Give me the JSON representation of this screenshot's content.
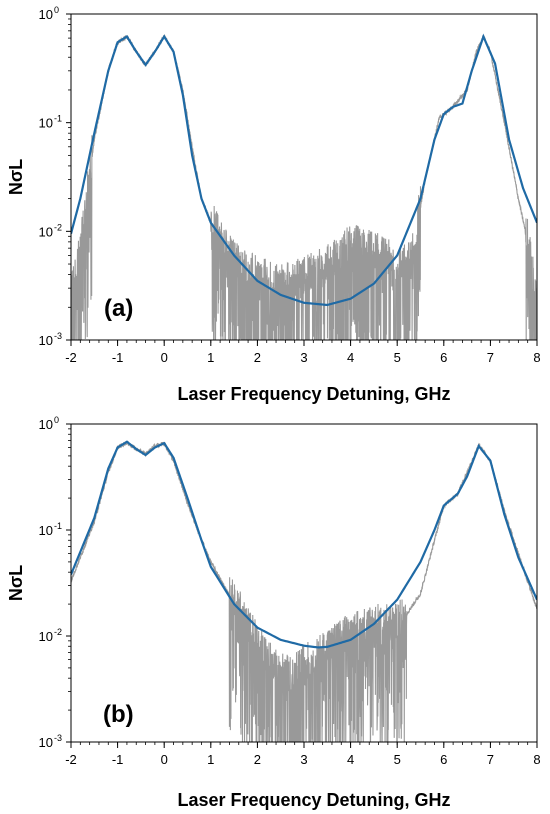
{
  "figure_colors": {
    "fit": "#1f6aa5",
    "measured": "#999999",
    "axis": "#000000"
  },
  "chart_data": [
    {
      "type": "line",
      "panel_label": "(a)",
      "xlabel": "Laser Frequency Detuning, GHz",
      "ylabel": "NσL",
      "xlim": [
        -2,
        8
      ],
      "ylim": [
        0.001,
        1
      ],
      "yscale": "log",
      "xticks": [
        -2,
        -1,
        0,
        1,
        2,
        3,
        4,
        5,
        6,
        7,
        8
      ],
      "xtick_labels": [
        "-2",
        "-1",
        "0",
        "1",
        "2",
        "3",
        "4",
        "5",
        "6",
        "7",
        "8"
      ],
      "yticks": [
        0.001,
        0.01,
        0.1,
        1
      ],
      "ytick_mantissa": [
        "10",
        "10",
        "10",
        "10"
      ],
      "ytick_exponent": [
        "-3",
        "-2",
        "-1",
        "0"
      ],
      "series": [
        {
          "kind": "measured-noisy",
          "color": "#999999",
          "x": [
            -2.0,
            -1.8,
            -1.5,
            -1.2,
            -1.0,
            -0.8,
            -0.6,
            -0.4,
            -0.2,
            0.0,
            0.2,
            0.4,
            0.6,
            0.8,
            1.0,
            1.2,
            1.5,
            2.0,
            2.5,
            3.0,
            3.5,
            4.0,
            4.5,
            5.0,
            5.3,
            5.6,
            5.9,
            6.2,
            6.5,
            6.7,
            6.85,
            7.0,
            7.3,
            7.6,
            7.8,
            8.0
          ],
          "y": [
            0.0025,
            0.006,
            0.07,
            0.3,
            0.55,
            0.62,
            0.45,
            0.34,
            0.45,
            0.62,
            0.45,
            0.2,
            0.06,
            0.02,
            0.012,
            0.008,
            0.005,
            0.0035,
            0.003,
            0.0035,
            0.0045,
            0.007,
            0.006,
            0.0045,
            0.005,
            0.03,
            0.11,
            0.14,
            0.2,
            0.45,
            0.62,
            0.45,
            0.1,
            0.02,
            0.008,
            0.002
          ],
          "noise_floor": 0.001,
          "noise_regions": [
            [
              -2.0,
              -1.55
            ],
            [
              1.0,
              5.5
            ],
            [
              7.75,
              8.0
            ]
          ]
        },
        {
          "kind": "fit",
          "color": "#1f6aa5",
          "x": [
            -2.0,
            -1.8,
            -1.5,
            -1.2,
            -1.0,
            -0.8,
            -0.6,
            -0.4,
            -0.2,
            0.0,
            0.2,
            0.4,
            0.6,
            0.8,
            1.0,
            1.5,
            2.0,
            2.5,
            3.0,
            3.5,
            4.0,
            4.5,
            5.0,
            5.5,
            5.8,
            6.0,
            6.2,
            6.4,
            6.6,
            6.85,
            7.1,
            7.4,
            7.7,
            8.0
          ],
          "y": [
            0.0095,
            0.02,
            0.08,
            0.3,
            0.55,
            0.62,
            0.45,
            0.34,
            0.45,
            0.62,
            0.45,
            0.18,
            0.05,
            0.02,
            0.012,
            0.006,
            0.0035,
            0.0026,
            0.0022,
            0.0021,
            0.0024,
            0.0033,
            0.006,
            0.02,
            0.07,
            0.12,
            0.14,
            0.15,
            0.3,
            0.62,
            0.35,
            0.07,
            0.025,
            0.012
          ]
        }
      ]
    },
    {
      "type": "line",
      "panel_label": "(b)",
      "xlabel": "Laser Frequency Detuning, GHz",
      "ylabel": "NσL",
      "xlim": [
        -2,
        8
      ],
      "ylim": [
        0.001,
        1
      ],
      "yscale": "log",
      "xticks": [
        -2,
        -1,
        0,
        1,
        2,
        3,
        4,
        5,
        6,
        7,
        8
      ],
      "xtick_labels": [
        "-2",
        "-1",
        "0",
        "1",
        "2",
        "3",
        "4",
        "5",
        "6",
        "7",
        "8"
      ],
      "yticks": [
        0.001,
        0.01,
        0.1,
        1
      ],
      "ytick_mantissa": [
        "10",
        "10",
        "10",
        "10"
      ],
      "ytick_exponent": [
        "-3",
        "-2",
        "-1",
        "0"
      ],
      "series": [
        {
          "kind": "measured-noisy",
          "color": "#999999",
          "x": [
            -2.0,
            -1.5,
            -1.2,
            -1.0,
            -0.8,
            -0.6,
            -0.4,
            -0.2,
            0.0,
            0.2,
            0.5,
            0.8,
            1.0,
            1.5,
            2.0,
            2.3,
            2.6,
            2.8,
            3.0,
            3.5,
            4.0,
            4.5,
            5.0,
            5.5,
            5.8,
            6.0,
            6.3,
            6.5,
            6.75,
            7.0,
            7.3,
            7.6,
            8.0
          ],
          "y": [
            0.033,
            0.12,
            0.35,
            0.6,
            0.67,
            0.58,
            0.52,
            0.62,
            0.66,
            0.45,
            0.18,
            0.08,
            0.05,
            0.02,
            0.008,
            0.005,
            0.004,
            0.004,
            0.005,
            0.007,
            0.01,
            0.012,
            0.012,
            0.025,
            0.08,
            0.17,
            0.22,
            0.35,
            0.63,
            0.45,
            0.15,
            0.06,
            0.018
          ],
          "noise_floor": 0.0012,
          "noise_regions": [
            [
              1.4,
              5.2
            ]
          ]
        },
        {
          "kind": "fit",
          "color": "#1f6aa5",
          "x": [
            -2.0,
            -1.5,
            -1.2,
            -1.0,
            -0.8,
            -0.6,
            -0.4,
            -0.2,
            0.0,
            0.2,
            0.5,
            0.8,
            1.0,
            1.5,
            2.0,
            2.5,
            3.0,
            3.3,
            3.5,
            4.0,
            4.5,
            5.0,
            5.5,
            5.8,
            6.0,
            6.3,
            6.5,
            6.75,
            7.0,
            7.3,
            7.6,
            8.0
          ],
          "y": [
            0.038,
            0.13,
            0.38,
            0.6,
            0.68,
            0.58,
            0.51,
            0.6,
            0.66,
            0.48,
            0.2,
            0.08,
            0.045,
            0.02,
            0.012,
            0.0092,
            0.0081,
            0.0078,
            0.0079,
            0.0092,
            0.013,
            0.022,
            0.05,
            0.1,
            0.17,
            0.22,
            0.32,
            0.62,
            0.45,
            0.14,
            0.055,
            0.022
          ]
        }
      ]
    }
  ]
}
